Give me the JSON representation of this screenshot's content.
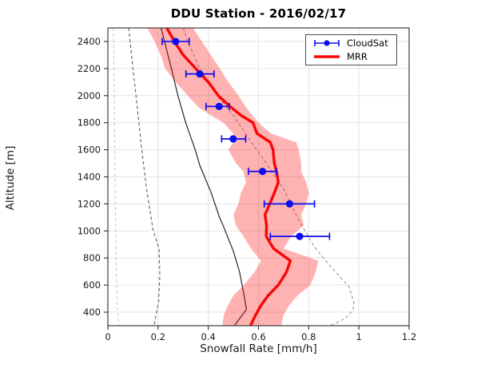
{
  "figure_title": "DDU Station - 2016/02/17",
  "chart_data": {
    "type": "line",
    "title": "DDU Station - 2016/02/17",
    "xlabel": "Snowfall Rate [mm/h]",
    "ylabel": "Altitude [m]",
    "xlim": [
      0,
      1.2
    ],
    "ylim": [
      300,
      2500
    ],
    "xticks": [
      0,
      0.2,
      0.4,
      0.6,
      0.8,
      1,
      1.2
    ],
    "xtick_labels": [
      "0",
      "0.2",
      "0.4",
      "0.6",
      "0.8",
      "1",
      "1.2"
    ],
    "yticks": [
      400,
      600,
      800,
      1000,
      1200,
      1400,
      1600,
      1800,
      2000,
      2200,
      2400
    ],
    "ytick_labels": [
      "400",
      "600",
      "800",
      "1000",
      "1200",
      "1400",
      "1600",
      "1800",
      "2000",
      "2200",
      "2400"
    ],
    "grid": true,
    "grid_color": "#e4e4e4",
    "box_color": "#3d3d3d",
    "legend": {
      "position": "top-right",
      "entries": [
        {
          "label": "CloudSat",
          "color": "#0d0dee",
          "marker": "errorbar-dot"
        },
        {
          "label": "MRR",
          "color": "#fa0505",
          "marker": "thick-line"
        }
      ]
    },
    "series": [
      {
        "name": "aux-dashed-left-light",
        "type": "line",
        "style": "dashed",
        "color": "#c7c7c7",
        "width": 1,
        "points": [
          [
            0.022,
            2500
          ],
          [
            0.026,
            2000
          ],
          [
            0.028,
            1500
          ],
          [
            0.031,
            1000
          ],
          [
            0.035,
            600
          ],
          [
            0.038,
            400
          ],
          [
            0.044,
            300
          ]
        ]
      },
      {
        "name": "aux-dashed-left-dark",
        "type": "line",
        "style": "dashed",
        "color": "#5c5c5c",
        "width": 1.1,
        "points": [
          [
            0.083,
            2500
          ],
          [
            0.1,
            2200
          ],
          [
            0.118,
            1900
          ],
          [
            0.133,
            1630
          ],
          [
            0.155,
            1300
          ],
          [
            0.18,
            1005
          ],
          [
            0.204,
            870
          ],
          [
            0.207,
            675
          ],
          [
            0.202,
            480
          ],
          [
            0.184,
            300
          ]
        ]
      },
      {
        "name": "aux-dashed-right",
        "type": "line",
        "style": "dashed",
        "color": "#979797",
        "width": 1.1,
        "points": [
          [
            0.3,
            2500
          ],
          [
            0.318,
            2400
          ],
          [
            0.366,
            2200
          ],
          [
            0.435,
            2000
          ],
          [
            0.5,
            1855
          ],
          [
            0.555,
            1700
          ],
          [
            0.62,
            1530
          ],
          [
            0.7,
            1310
          ],
          [
            0.76,
            1080
          ],
          [
            0.82,
            890
          ],
          [
            0.89,
            730
          ],
          [
            0.96,
            590
          ],
          [
            0.98,
            475
          ],
          [
            0.977,
            415
          ],
          [
            0.95,
            360
          ],
          [
            0.91,
            320
          ],
          [
            0.885,
            300
          ]
        ]
      },
      {
        "name": "aux-solid-black",
        "type": "line",
        "style": "solid",
        "color": "#262626",
        "width": 1.2,
        "points": [
          [
            0.212,
            2500
          ],
          [
            0.253,
            2200
          ],
          [
            0.279,
            2000
          ],
          [
            0.31,
            1800
          ],
          [
            0.348,
            1600
          ],
          [
            0.366,
            1485
          ],
          [
            0.41,
            1290
          ],
          [
            0.445,
            1100
          ],
          [
            0.458,
            1045
          ],
          [
            0.5,
            850
          ],
          [
            0.525,
            695
          ],
          [
            0.545,
            500
          ],
          [
            0.552,
            420
          ],
          [
            0.504,
            300
          ]
        ]
      },
      {
        "name": "mrr-uncertainty-band",
        "type": "band",
        "fill": "rgba(255,0,0,0.30)",
        "left": [
          [
            0.157,
            2500
          ],
          [
            0.186,
            2400
          ],
          [
            0.21,
            2300
          ],
          [
            0.228,
            2200
          ],
          [
            0.27,
            2100
          ],
          [
            0.318,
            2000
          ],
          [
            0.36,
            1915
          ],
          [
            0.41,
            1855
          ],
          [
            0.46,
            1800
          ],
          [
            0.5,
            1720
          ],
          [
            0.5,
            1655
          ],
          [
            0.48,
            1600
          ],
          [
            0.51,
            1500
          ],
          [
            0.54,
            1440
          ],
          [
            0.55,
            1360
          ],
          [
            0.53,
            1280
          ],
          [
            0.52,
            1200
          ],
          [
            0.5,
            1120
          ],
          [
            0.51,
            1040
          ],
          [
            0.54,
            960
          ],
          [
            0.57,
            870
          ],
          [
            0.61,
            780
          ],
          [
            0.584,
            695
          ],
          [
            0.541,
            600
          ],
          [
            0.499,
            520
          ],
          [
            0.478,
            450
          ],
          [
            0.462,
            380
          ],
          [
            0.456,
            300
          ]
        ],
        "right": [
          [
            0.34,
            2500
          ],
          [
            0.374,
            2400
          ],
          [
            0.41,
            2300
          ],
          [
            0.446,
            2200
          ],
          [
            0.48,
            2100
          ],
          [
            0.52,
            2000
          ],
          [
            0.55,
            1915
          ],
          [
            0.575,
            1855
          ],
          [
            0.6,
            1800
          ],
          [
            0.65,
            1720
          ],
          [
            0.75,
            1655
          ],
          [
            0.76,
            1600
          ],
          [
            0.77,
            1500
          ],
          [
            0.77,
            1440
          ],
          [
            0.79,
            1360
          ],
          [
            0.8,
            1280
          ],
          [
            0.79,
            1200
          ],
          [
            0.77,
            1120
          ],
          [
            0.78,
            1040
          ],
          [
            0.73,
            960
          ],
          [
            0.7,
            870
          ],
          [
            0.838,
            780
          ],
          [
            0.828,
            695
          ],
          [
            0.807,
            600
          ],
          [
            0.754,
            520
          ],
          [
            0.722,
            450
          ],
          [
            0.7,
            380
          ],
          [
            0.69,
            300
          ]
        ]
      },
      {
        "name": "MRR",
        "type": "line",
        "style": "solid",
        "color": "#fa0505",
        "width": 3.4,
        "points": [
          [
            0.235,
            2500
          ],
          [
            0.265,
            2400
          ],
          [
            0.3,
            2300
          ],
          [
            0.35,
            2200
          ],
          [
            0.4,
            2100
          ],
          [
            0.44,
            2000
          ],
          [
            0.49,
            1915
          ],
          [
            0.53,
            1855
          ],
          [
            0.578,
            1800
          ],
          [
            0.594,
            1720
          ],
          [
            0.647,
            1655
          ],
          [
            0.658,
            1600
          ],
          [
            0.663,
            1500
          ],
          [
            0.672,
            1440
          ],
          [
            0.679,
            1360
          ],
          [
            0.663,
            1280
          ],
          [
            0.645,
            1200
          ],
          [
            0.626,
            1120
          ],
          [
            0.632,
            1040
          ],
          [
            0.631,
            960
          ],
          [
            0.66,
            870
          ],
          [
            0.727,
            780
          ],
          [
            0.711,
            695
          ],
          [
            0.679,
            600
          ],
          [
            0.637,
            520
          ],
          [
            0.61,
            450
          ],
          [
            0.589,
            380
          ],
          [
            0.568,
            300
          ]
        ]
      },
      {
        "name": "CloudSat",
        "type": "scatter-errorbar-x",
        "color": "#0d0dee",
        "dot_radius": 4.6,
        "points": [
          {
            "altitude_m": 2400,
            "rate_mmh": 0.27,
            "err_lo": 0.216,
            "err_hi": 0.324
          },
          {
            "altitude_m": 2160,
            "rate_mmh": 0.366,
            "err_lo": 0.311,
            "err_hi": 0.423
          },
          {
            "altitude_m": 1920,
            "rate_mmh": 0.443,
            "err_lo": 0.391,
            "err_hi": 0.483
          },
          {
            "altitude_m": 1680,
            "rate_mmh": 0.499,
            "err_lo": 0.453,
            "err_hi": 0.549
          },
          {
            "altitude_m": 1440,
            "rate_mmh": 0.616,
            "err_lo": 0.56,
            "err_hi": 0.671
          },
          {
            "altitude_m": 1200,
            "rate_mmh": 0.724,
            "err_lo": 0.623,
            "err_hi": 0.823
          },
          {
            "altitude_m": 960,
            "rate_mmh": 0.764,
            "err_lo": 0.647,
            "err_hi": 0.883
          }
        ]
      }
    ]
  }
}
